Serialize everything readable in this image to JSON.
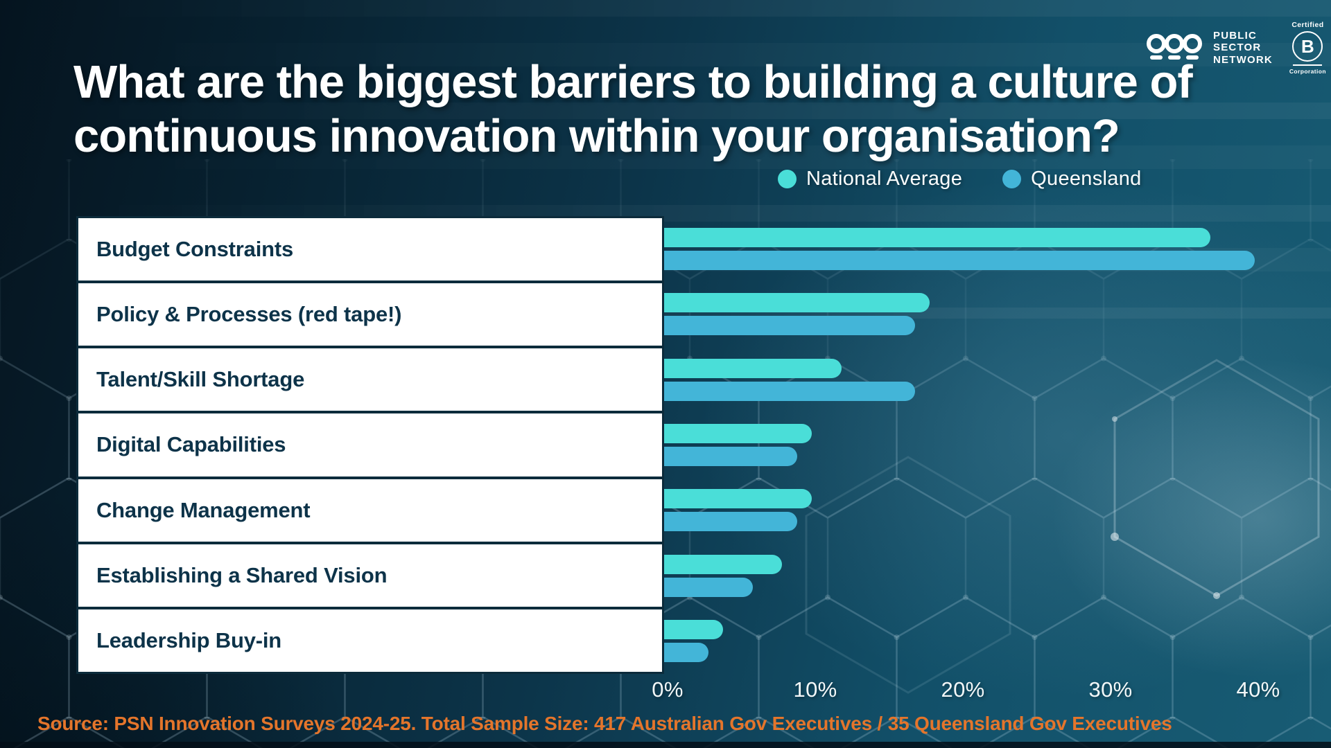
{
  "logo": {
    "org_lines": [
      "PUBLIC",
      "SECTOR",
      "NETWORK"
    ],
    "bcorp": {
      "top": "Certified",
      "letter": "B",
      "bottom": "Corporation"
    }
  },
  "title": {
    "line1": "What are the biggest barriers to building a culture of",
    "line2": "continuous innovation within your organisation?"
  },
  "chart_data": {
    "type": "bar",
    "orientation": "horizontal",
    "title": "What are the biggest barriers to building a culture of continuous innovation within your organisation?",
    "categories": [
      "Budget Constraints",
      "Policy & Processes (red tape!)",
      "Talent/Skill Shortage",
      "Digital Capabilities",
      "Change Management",
      "Establishing a Shared Vision",
      "Leadership Buy-in"
    ],
    "series": [
      {
        "name": "National Average",
        "color": "#4ADED8",
        "values": [
          37,
          18,
          12,
          10,
          10,
          8,
          4
        ]
      },
      {
        "name": "Queensland",
        "color": "#43B5D8",
        "values": [
          40,
          17,
          17,
          9,
          9,
          6,
          3
        ]
      }
    ],
    "x_ticks": [
      "0%",
      "10%",
      "20%",
      "30%",
      "40%"
    ],
    "xlim": [
      0,
      40
    ],
    "unit": "percent",
    "grid": false,
    "legend_position": "top-right"
  },
  "source_line": "Source: PSN Innovation Surveys 2024-25. Total Sample Size: 417 Australian Gov Executives / 35 Queensland Gov Executives",
  "colors": {
    "national_average": "#4ADED8",
    "queensland": "#43B5D8",
    "row_background": "#ffffff",
    "row_border": "#0c2b3b",
    "row_text": "#0d3349",
    "title_text": "#ffffff",
    "axis_text": "#f2f7f8",
    "source_text": "#e4752b",
    "background_dark": "#05141f",
    "background_teal": "#185c74"
  }
}
